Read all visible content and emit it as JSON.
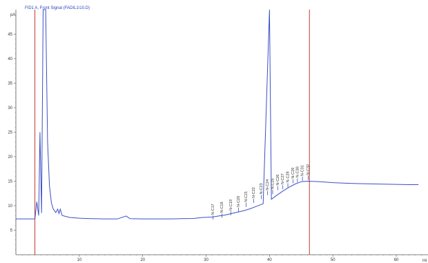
{
  "chart_data": {
    "type": "line",
    "title": "FID1 A, Front Signal (FADIL1\\10.D)",
    "ylabel": "pA",
    "xlabel": "mi",
    "xlim": [
      0,
      65
    ],
    "ylim": [
      0,
      50
    ],
    "x_ticks": [
      10,
      20,
      30,
      40,
      50,
      60
    ],
    "y_ticks": [
      5,
      10,
      15,
      20,
      25,
      30,
      35,
      40,
      45
    ],
    "series": [
      {
        "color": "#3a4ec6",
        "x": [
          0.0,
          3.0,
          3.3,
          3.6,
          3.8,
          4.05,
          4.3,
          4.5,
          4.7,
          5.0,
          5.3,
          5.6,
          5.9,
          6.3,
          6.6,
          6.8,
          7.0,
          7.3,
          8.5,
          10,
          12,
          14,
          16,
          17.4,
          17.6,
          18.0,
          20,
          22,
          24,
          26,
          28,
          29.5,
          31,
          32,
          33,
          34,
          35,
          36,
          37,
          38,
          39,
          40.0,
          40.3,
          41,
          42,
          43,
          44,
          45,
          46,
          48,
          50,
          52,
          54,
          56,
          58,
          60,
          62,
          63.5
        ],
        "y": [
          7.3,
          7.3,
          10.8,
          8.0,
          25.0,
          8.5,
          50.0,
          50.0,
          50.0,
          23.0,
          14.0,
          10.6,
          9.3,
          8.6,
          9.3,
          8.4,
          9.3,
          8.0,
          7.6,
          7.45,
          7.35,
          7.3,
          7.3,
          7.9,
          7.7,
          7.35,
          7.3,
          7.3,
          7.3,
          7.35,
          7.4,
          7.6,
          7.7,
          7.9,
          8.1,
          8.4,
          8.7,
          9.0,
          9.4,
          9.9,
          10.4,
          50.0,
          11.3,
          12.0,
          12.9,
          13.7,
          14.4,
          14.9,
          15.0,
          14.9,
          14.7,
          14.6,
          14.5,
          14.45,
          14.4,
          14.35,
          14.3,
          14.3
        ]
      }
    ],
    "markers": [
      {
        "x": 3.0,
        "color": "#c0392b"
      },
      {
        "x": 46.3,
        "color": "#c0392b"
      }
    ],
    "peaks": [
      {
        "label": "N-C17",
        "x": 31.1,
        "y": 8.0
      },
      {
        "label": "N-C18",
        "x": 32.5,
        "y": 8.4
      },
      {
        "label": "N-C19",
        "x": 33.9,
        "y": 8.9
      },
      {
        "label": "N-C20",
        "x": 35.1,
        "y": 9.6
      },
      {
        "label": "N-C21",
        "x": 36.3,
        "y": 10.6
      },
      {
        "label": "N-C22",
        "x": 37.5,
        "y": 11.4
      },
      {
        "label": "N-C23",
        "x": 38.7,
        "y": 12.2
      },
      {
        "label": "N-C24",
        "x": 39.7,
        "y": 13.0
      },
      {
        "label": "N-C25",
        "x": 40.5,
        "y": 13.2
      },
      {
        "label": "N-C26",
        "x": 41.3,
        "y": 14.0
      },
      {
        "label": "N-C27",
        "x": 42.1,
        "y": 14.2
      },
      {
        "label": "N-C28",
        "x": 42.9,
        "y": 14.6
      },
      {
        "label": "N-C29",
        "x": 43.7,
        "y": 15.4
      },
      {
        "label": "N-C30",
        "x": 44.4,
        "y": 15.6
      },
      {
        "label": "N-C31",
        "x": 45.2,
        "y": 15.9
      },
      {
        "label": "N-C32",
        "x": 46.1,
        "y": 16.1
      }
    ]
  }
}
